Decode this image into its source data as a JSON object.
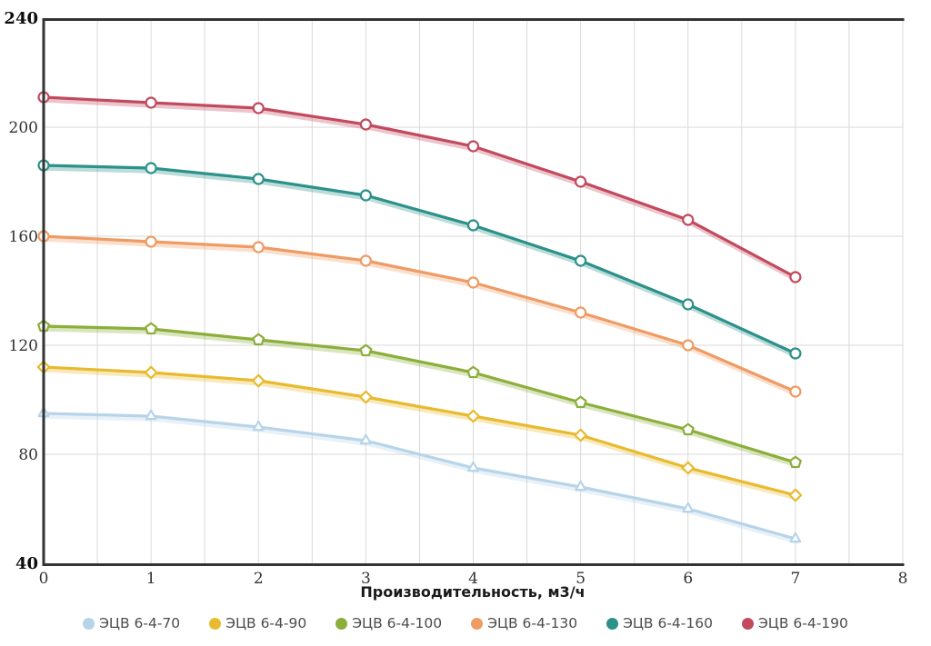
{
  "chart_data": {
    "type": "line",
    "title": "",
    "xlabel": "Производительность, м3/ч",
    "ylabel": "",
    "xlim": [
      0,
      8
    ],
    "ylim": [
      40,
      240
    ],
    "x_ticks": [
      0,
      1,
      2,
      3,
      4,
      5,
      6,
      7,
      8
    ],
    "y_ticks": [
      40,
      80,
      120,
      160,
      200,
      240
    ],
    "y_ticks_bold": [
      40,
      240
    ],
    "minor_x_grid_step": 0.5,
    "grid": true,
    "legend_position": "bottom",
    "colors": {
      "grid": "#d9d9d9",
      "axis": "#333333",
      "tick_text": "#333333",
      "legend_text": "#4d4d4d"
    },
    "x": [
      0,
      1,
      2,
      3,
      4,
      5,
      6,
      7
    ],
    "series": [
      {
        "name": "ЭЦВ 6-4-70",
        "color": "#b7d4e9",
        "marker": "triangle",
        "values": [
          95,
          94,
          90,
          85,
          75,
          68,
          60,
          49
        ]
      },
      {
        "name": "ЭЦВ 6-4-90",
        "color": "#e8ba2f",
        "marker": "diamond",
        "values": [
          112,
          110,
          107,
          101,
          94,
          87,
          75,
          65
        ]
      },
      {
        "name": "ЭЦВ 6-4-100",
        "color": "#8cae3a",
        "marker": "pentagon",
        "values": [
          127,
          126,
          122,
          118,
          110,
          99,
          89,
          77
        ]
      },
      {
        "name": "ЭЦВ 6-4-130",
        "color": "#ee9b64",
        "marker": "circle",
        "values": [
          160,
          158,
          156,
          151,
          143,
          132,
          120,
          103
        ]
      },
      {
        "name": "ЭЦВ 6-4-160",
        "color": "#2b9189",
        "marker": "circle",
        "values": [
          186,
          185,
          181,
          175,
          164,
          151,
          135,
          117
        ]
      },
      {
        "name": "ЭЦВ 6-4-190",
        "color": "#c24a5e",
        "marker": "circle",
        "values": [
          211,
          209,
          207,
          201,
          193,
          180,
          166,
          145
        ]
      }
    ]
  }
}
